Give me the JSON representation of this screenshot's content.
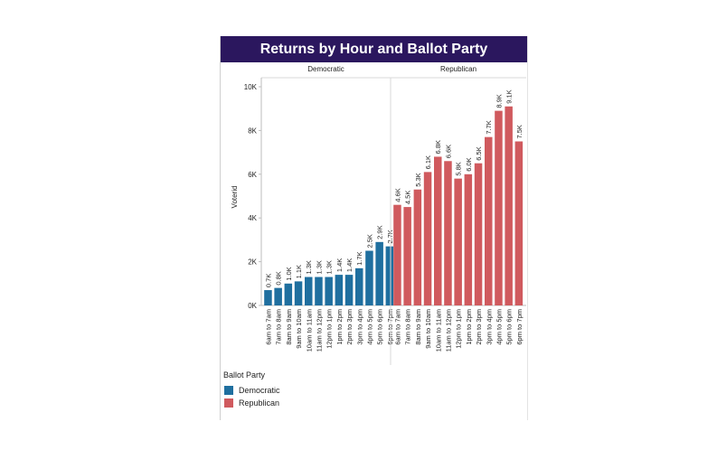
{
  "colors": {
    "title_bg": "#2b175e",
    "title_text": "#ffffff",
    "democratic": "#1f6f9f",
    "republican": "#d05a5e",
    "axis": "#bdbdbd"
  },
  "legend": {
    "title": "Ballot Party",
    "items": [
      {
        "label": "Democratic",
        "color": "#1f6f9f"
      },
      {
        "label": "Republican",
        "color": "#d05a5e"
      }
    ]
  },
  "chart_data": {
    "type": "bar",
    "title": "Returns by Hour and Ballot Party",
    "ylabel": "Voterid",
    "xlabel": "",
    "ylim": [
      0,
      10000
    ],
    "yticks": [
      0,
      2000,
      4000,
      6000,
      8000,
      10000
    ],
    "ytick_labels": [
      "0K",
      "2K",
      "4K",
      "6K",
      "8K",
      "10K"
    ],
    "grid": false,
    "legend_position": "bottom-left",
    "panels": [
      {
        "name": "Democratic",
        "color": "#1f6f9f",
        "categories": [
          "6am to 7am",
          "7am to 8am",
          "8am to 9am",
          "9am to 10am",
          "10am to 11am",
          "11am to 12pm",
          "12pm to 1pm",
          "1pm to 2pm",
          "2pm to 3pm",
          "3pm to 4pm",
          "4pm to 5pm",
          "5pm to 6pm",
          "6pm to 7pm"
        ],
        "values": [
          700,
          800,
          1000,
          1100,
          1300,
          1300,
          1300,
          1400,
          1400,
          1700,
          2500,
          2900,
          2700
        ],
        "labels": [
          "0.7K",
          "0.8K",
          "1.0K",
          "1.1K",
          "1.3K",
          "1.3K",
          "1.3K",
          "1.4K",
          "1.4K",
          "1.7K",
          "2.5K",
          "2.9K",
          "2.7K"
        ]
      },
      {
        "name": "Republican",
        "color": "#d05a5e",
        "categories": [
          "6am to 7am",
          "7am to 8am",
          "8am to 9am",
          "9am to 10am",
          "10am to 11am",
          "11am to 12pm",
          "12pm to 1pm",
          "1pm to 2pm",
          "2pm to 3pm",
          "3pm to 4pm",
          "4pm to 5pm",
          "5pm to 6pm",
          "6pm to 7pm"
        ],
        "values": [
          4600,
          4500,
          5300,
          6100,
          6800,
          6600,
          5800,
          6000,
          6500,
          7700,
          8900,
          9100,
          7500
        ],
        "labels": [
          "4.6K",
          "4.5K",
          "5.3K",
          "6.1K",
          "6.8K",
          "6.6K",
          "5.8K",
          "6.0K",
          "6.5K",
          "7.7K",
          "8.9K",
          "9.1K",
          "7.5K"
        ]
      }
    ]
  }
}
